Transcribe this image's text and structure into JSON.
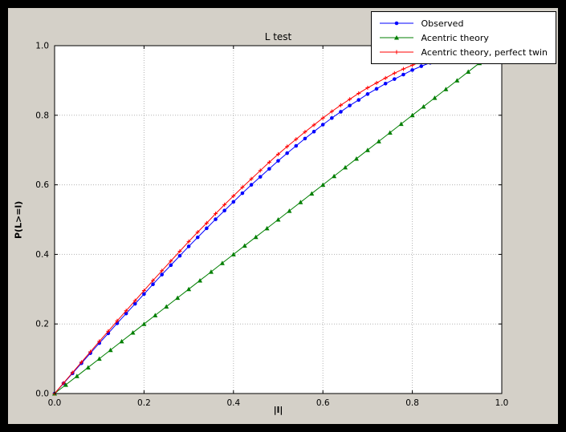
{
  "window": {
    "frame_color": "#000000",
    "figure_background": "#d4d0c8",
    "axes_background": "#ffffff",
    "grid_color": "#b3b3b3"
  },
  "chart_data": {
    "type": "line",
    "title": "L test",
    "xlabel": "|l|",
    "ylabel": "P(L>=l)",
    "xlim": [
      0.0,
      1.0
    ],
    "ylim": [
      0.0,
      1.0
    ],
    "xtick_labels": [
      "0.0",
      "0.2",
      "0.4",
      "0.6",
      "0.8",
      "1.0"
    ],
    "ytick_labels": [
      "0.0",
      "0.2",
      "0.4",
      "0.6",
      "0.8",
      "1.0"
    ],
    "xticks": [
      0.0,
      0.2,
      0.4,
      0.6,
      0.8,
      1.0
    ],
    "yticks": [
      0.0,
      0.2,
      0.4,
      0.6,
      0.8,
      1.0
    ],
    "grid": true,
    "legend_position": "upper right",
    "series": [
      {
        "name": "Observed",
        "color": "#0000ff",
        "marker": "circle",
        "x": [
          0,
          0.02,
          0.04,
          0.06,
          0.08,
          0.1,
          0.12,
          0.14,
          0.16,
          0.18,
          0.2,
          0.22,
          0.24,
          0.26,
          0.28,
          0.3,
          0.32,
          0.34,
          0.36,
          0.38,
          0.4,
          0.42,
          0.44,
          0.46,
          0.48,
          0.5,
          0.52,
          0.54,
          0.56,
          0.58,
          0.6,
          0.62,
          0.64,
          0.66,
          0.68,
          0.7,
          0.72,
          0.74,
          0.76,
          0.78,
          0.8,
          0.82,
          0.84,
          0.86
        ],
        "y": [
          0,
          0.029,
          0.058,
          0.087,
          0.116,
          0.145,
          0.173,
          0.202,
          0.23,
          0.258,
          0.286,
          0.314,
          0.342,
          0.369,
          0.396,
          0.423,
          0.449,
          0.475,
          0.501,
          0.526,
          0.551,
          0.576,
          0.6,
          0.623,
          0.646,
          0.669,
          0.691,
          0.712,
          0.733,
          0.753,
          0.773,
          0.792,
          0.81,
          0.828,
          0.844,
          0.861,
          0.876,
          0.891,
          0.904,
          0.917,
          0.93,
          0.941,
          0.951,
          0.961
        ]
      },
      {
        "name": "Acentric theory",
        "color": "#007f00",
        "marker": "triangle",
        "x": [
          0,
          0.025,
          0.05,
          0.075,
          0.1,
          0.125,
          0.15,
          0.175,
          0.2,
          0.225,
          0.25,
          0.275,
          0.3,
          0.325,
          0.35,
          0.375,
          0.4,
          0.425,
          0.45,
          0.475,
          0.5,
          0.525,
          0.55,
          0.575,
          0.6,
          0.625,
          0.65,
          0.675,
          0.7,
          0.725,
          0.75,
          0.775,
          0.8,
          0.825,
          0.85,
          0.875,
          0.9,
          0.925,
          0.95,
          0.975
        ],
        "y": [
          0,
          0.025,
          0.05,
          0.075,
          0.1,
          0.125,
          0.15,
          0.175,
          0.2,
          0.225,
          0.25,
          0.275,
          0.3,
          0.325,
          0.35,
          0.375,
          0.4,
          0.425,
          0.45,
          0.475,
          0.5,
          0.525,
          0.55,
          0.575,
          0.6,
          0.625,
          0.65,
          0.675,
          0.7,
          0.725,
          0.75,
          0.775,
          0.8,
          0.825,
          0.85,
          0.875,
          0.9,
          0.925,
          0.95,
          0.975
        ]
      },
      {
        "name": "Acentric theory, perfect twin",
        "color": "#ff0000",
        "marker": "plus",
        "x": [
          0,
          0.02,
          0.04,
          0.06,
          0.08,
          0.1,
          0.12,
          0.14,
          0.16,
          0.18,
          0.2,
          0.22,
          0.24,
          0.26,
          0.28,
          0.3,
          0.32,
          0.34,
          0.36,
          0.38,
          0.4,
          0.42,
          0.44,
          0.46,
          0.48,
          0.5,
          0.52,
          0.54,
          0.56,
          0.58,
          0.6,
          0.62,
          0.64,
          0.66,
          0.68,
          0.7,
          0.72,
          0.74,
          0.76,
          0.78,
          0.8,
          0.82,
          0.84,
          0.86
        ],
        "y": [
          0,
          0.03,
          0.06,
          0.09,
          0.12,
          0.15,
          0.179,
          0.209,
          0.238,
          0.267,
          0.296,
          0.325,
          0.353,
          0.381,
          0.409,
          0.437,
          0.464,
          0.49,
          0.517,
          0.543,
          0.568,
          0.593,
          0.617,
          0.641,
          0.665,
          0.688,
          0.71,
          0.731,
          0.752,
          0.772,
          0.792,
          0.811,
          0.829,
          0.846,
          0.863,
          0.879,
          0.893,
          0.907,
          0.921,
          0.933,
          0.944,
          0.954,
          0.964,
          0.972
        ]
      }
    ]
  }
}
